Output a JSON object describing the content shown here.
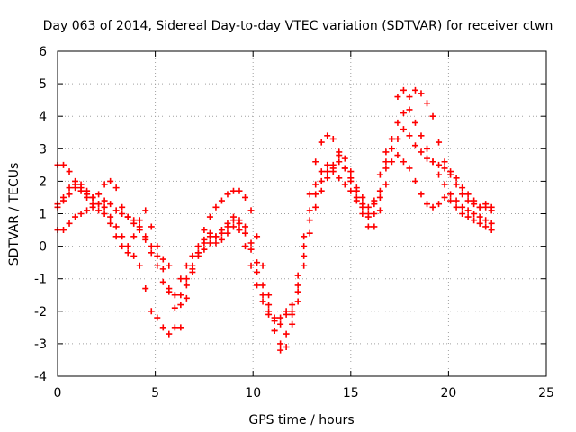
{
  "chart_data": {
    "type": "scatter",
    "title": "Day 063 of 2014, Sidereal Day-to-day VTEC variation (SDTVAR) for receiver ctwn",
    "xlabel": "GPS time / hours",
    "ylabel": "SDTVAR / TECUs",
    "xlim": [
      0,
      25
    ],
    "ylim": [
      -4,
      6
    ],
    "xticks": [
      0,
      5,
      10,
      15,
      20,
      25
    ],
    "yticks": [
      -4,
      -3,
      -2,
      -1,
      0,
      1,
      2,
      3,
      4,
      5,
      6
    ],
    "grid": true,
    "marker": "plus",
    "color": "#ff0000",
    "series": [
      {
        "x": [
          0.0,
          0.3,
          0.6,
          0.9,
          1.2,
          1.5,
          1.8,
          2.1,
          2.4,
          2.7,
          3.0,
          3.3,
          3.6,
          3.9,
          4.2,
          4.5,
          4.8,
          5.1,
          5.4,
          5.7,
          6.0,
          6.3,
          6.6,
          6.9,
          7.2,
          7.5,
          7.8,
          8.1,
          8.4,
          8.7,
          9.0,
          9.3,
          9.6,
          9.9,
          10.2,
          10.5,
          10.8,
          11.1,
          11.4,
          11.7,
          12.0,
          12.3,
          12.6,
          12.9,
          13.2,
          13.5,
          13.8,
          14.1,
          14.4,
          14.7,
          15.0,
          15.3,
          15.6,
          15.9,
          16.2,
          16.5,
          16.8,
          17.1,
          17.4,
          17.7,
          18.0,
          18.3,
          18.6,
          18.9,
          19.2,
          19.5,
          19.8,
          20.1,
          20.4,
          20.7,
          21.0,
          21.3,
          21.6,
          21.9,
          22.2
        ],
        "y": [
          2.5,
          2.5,
          2.3,
          1.9,
          1.7,
          1.5,
          1.3,
          1.1,
          1.2,
          0.9,
          0.6,
          0.3,
          0.0,
          -0.3,
          -0.6,
          -1.3,
          -2.0,
          -2.2,
          -2.5,
          -2.7,
          -2.5,
          -1.8,
          -1.2,
          -0.8,
          -0.2,
          0.2,
          0.4,
          0.3,
          0.4,
          0.6,
          0.8,
          0.5,
          0.0,
          -0.6,
          -1.2,
          -1.7,
          -2.1,
          -2.6,
          -3.0,
          -3.1,
          -2.4,
          -1.7,
          -0.6,
          0.4,
          1.2,
          1.7,
          2.1,
          2.4,
          2.6,
          2.4,
          2.0,
          1.7,
          1.5,
          1.2,
          1.3,
          1.5,
          2.4,
          3.3,
          4.6,
          4.8,
          4.6,
          4.8,
          4.7,
          4.4,
          4.0,
          3.2,
          2.6,
          2.2,
          1.9,
          1.6,
          1.4,
          1.3,
          1.2,
          1.2,
          1.1
        ]
      },
      {
        "x": [
          0.0,
          0.3,
          0.6,
          0.9,
          1.2,
          1.5,
          1.8,
          2.1,
          2.4,
          2.7,
          3.0,
          3.3,
          3.6,
          3.9,
          4.2,
          4.5,
          4.8,
          5.1,
          5.4,
          5.7,
          6.0,
          6.3,
          6.6,
          6.9,
          7.2,
          7.5,
          7.8,
          8.1,
          8.4,
          8.7,
          9.0,
          9.3,
          9.6,
          9.9,
          10.2,
          10.5,
          10.8,
          11.1,
          11.4,
          11.7,
          12.0,
          12.3,
          12.6,
          12.9,
          13.2,
          13.5,
          13.8,
          14.1,
          14.4,
          14.7,
          15.0,
          15.3,
          15.6,
          15.9,
          16.2,
          16.5,
          16.8,
          17.1,
          17.4,
          17.7,
          18.0,
          18.3,
          18.6,
          18.9,
          19.2,
          19.5,
          19.8,
          20.1,
          20.4,
          20.7,
          21.0,
          21.3,
          21.6,
          21.9,
          22.2
        ],
        "y": [
          1.3,
          1.4,
          1.6,
          1.8,
          1.9,
          1.7,
          1.5,
          1.6,
          1.9,
          2.0,
          1.8,
          1.2,
          0.9,
          0.7,
          0.5,
          0.2,
          -0.2,
          -0.6,
          -1.1,
          -1.4,
          -1.5,
          -1.0,
          -0.6,
          -0.3,
          0.0,
          0.5,
          0.9,
          1.2,
          1.4,
          1.6,
          1.7,
          1.7,
          1.5,
          1.1,
          0.3,
          -0.6,
          -1.5,
          -2.2,
          -2.4,
          -2.1,
          -1.8,
          -0.9,
          0.3,
          1.6,
          2.6,
          3.2,
          3.4,
          3.3,
          2.9,
          2.4,
          2.1,
          1.5,
          1.0,
          0.6,
          0.6,
          1.1,
          1.9,
          2.6,
          3.3,
          3.6,
          3.4,
          3.1,
          2.9,
          2.7,
          2.6,
          2.5,
          2.4,
          2.3,
          2.1,
          1.8,
          1.6,
          1.4,
          1.2,
          1.3,
          1.2
        ]
      },
      {
        "x": [
          0.0,
          0.3,
          0.6,
          0.9,
          1.2,
          1.5,
          1.8,
          2.1,
          2.4,
          2.7,
          3.0,
          3.3,
          3.6,
          3.9,
          4.2,
          4.5,
          4.8,
          5.1,
          5.4,
          5.7,
          6.0,
          6.3,
          6.6,
          6.9,
          7.2,
          7.5,
          7.8,
          8.1,
          8.4,
          8.7,
          9.0,
          9.3,
          9.6,
          9.9,
          10.2,
          10.5,
          10.8,
          11.1,
          11.4,
          11.7,
          12.0,
          12.3,
          12.6,
          12.9,
          13.2,
          13.5,
          13.8,
          14.1,
          14.4,
          14.7,
          15.0,
          15.3,
          15.6,
          15.9,
          16.2,
          16.5,
          16.8,
          17.1,
          17.4,
          17.7,
          18.0,
          18.3,
          18.6,
          18.9,
          19.2,
          19.5,
          19.8,
          20.1,
          20.4,
          20.7,
          21.0,
          21.3,
          21.6,
          21.9,
          22.2
        ],
        "y": [
          0.5,
          0.5,
          0.7,
          0.9,
          1.0,
          1.1,
          1.2,
          1.3,
          1.4,
          1.3,
          1.1,
          1.0,
          0.9,
          0.8,
          0.6,
          0.3,
          0.0,
          -0.3,
          -0.7,
          -1.3,
          -1.9,
          -1.5,
          -1.0,
          -0.6,
          -0.3,
          -0.1,
          0.1,
          0.3,
          0.5,
          0.7,
          0.9,
          0.8,
          0.6,
          0.1,
          -0.5,
          -1.2,
          -1.8,
          -2.3,
          -2.2,
          -2.0,
          -2.0,
          -1.4,
          -0.3,
          0.8,
          1.6,
          2.0,
          2.3,
          2.5,
          2.8,
          2.7,
          2.3,
          1.8,
          1.3,
          1.0,
          1.4,
          2.2,
          2.9,
          3.0,
          2.8,
          2.6,
          2.4,
          2.0,
          1.6,
          1.3,
          1.2,
          1.3,
          1.5,
          1.4,
          1.2,
          1.0,
          0.9,
          0.8,
          0.7,
          0.6,
          0.5
        ]
      },
      {
        "x": [
          0.0,
          0.3,
          0.6,
          0.9,
          1.2,
          1.5,
          1.8,
          2.1,
          2.4,
          2.7,
          3.0,
          3.3,
          3.6,
          3.9,
          4.2,
          4.5,
          4.8,
          5.1,
          5.4,
          5.7,
          6.0,
          6.3,
          6.6,
          6.9,
          7.2,
          7.5,
          7.8,
          8.1,
          8.4,
          8.7,
          9.0,
          9.3,
          9.6,
          9.9,
          10.2,
          10.5,
          10.8,
          11.1,
          11.4,
          11.7,
          12.0,
          12.3,
          12.6,
          12.9,
          13.2,
          13.5,
          13.8,
          14.1,
          14.4,
          14.7,
          15.0,
          15.3,
          15.6,
          15.9,
          16.2,
          16.5,
          16.8,
          17.1,
          17.4,
          17.7,
          18.0,
          18.3,
          18.6,
          18.9,
          19.2,
          19.5,
          19.8,
          20.1,
          20.4,
          20.7,
          21.0,
          21.3,
          21.6,
          21.9,
          22.2
        ],
        "y": [
          1.2,
          1.5,
          1.8,
          2.0,
          1.8,
          1.6,
          1.5,
          1.3,
          1.0,
          0.7,
          0.3,
          0.0,
          -0.2,
          0.3,
          0.8,
          1.1,
          0.6,
          0.0,
          -0.4,
          -0.6,
          -1.5,
          -2.5,
          -1.6,
          -0.7,
          -0.2,
          0.1,
          0.3,
          0.1,
          0.2,
          0.4,
          0.6,
          0.7,
          0.4,
          -0.1,
          -0.8,
          -1.5,
          -2.0,
          -2.6,
          -3.2,
          -2.7,
          -2.1,
          -1.2,
          0.0,
          1.1,
          1.9,
          2.3,
          2.5,
          2.3,
          2.1,
          1.9,
          1.7,
          1.4,
          1.2,
          0.9,
          1.0,
          1.7,
          2.6,
          3.3,
          3.8,
          4.1,
          4.2,
          3.8,
          3.4,
          3.0,
          2.6,
          2.2,
          1.9,
          1.6,
          1.4,
          1.2,
          1.1,
          1.0,
          0.9,
          0.8,
          0.7
        ]
      }
    ]
  }
}
